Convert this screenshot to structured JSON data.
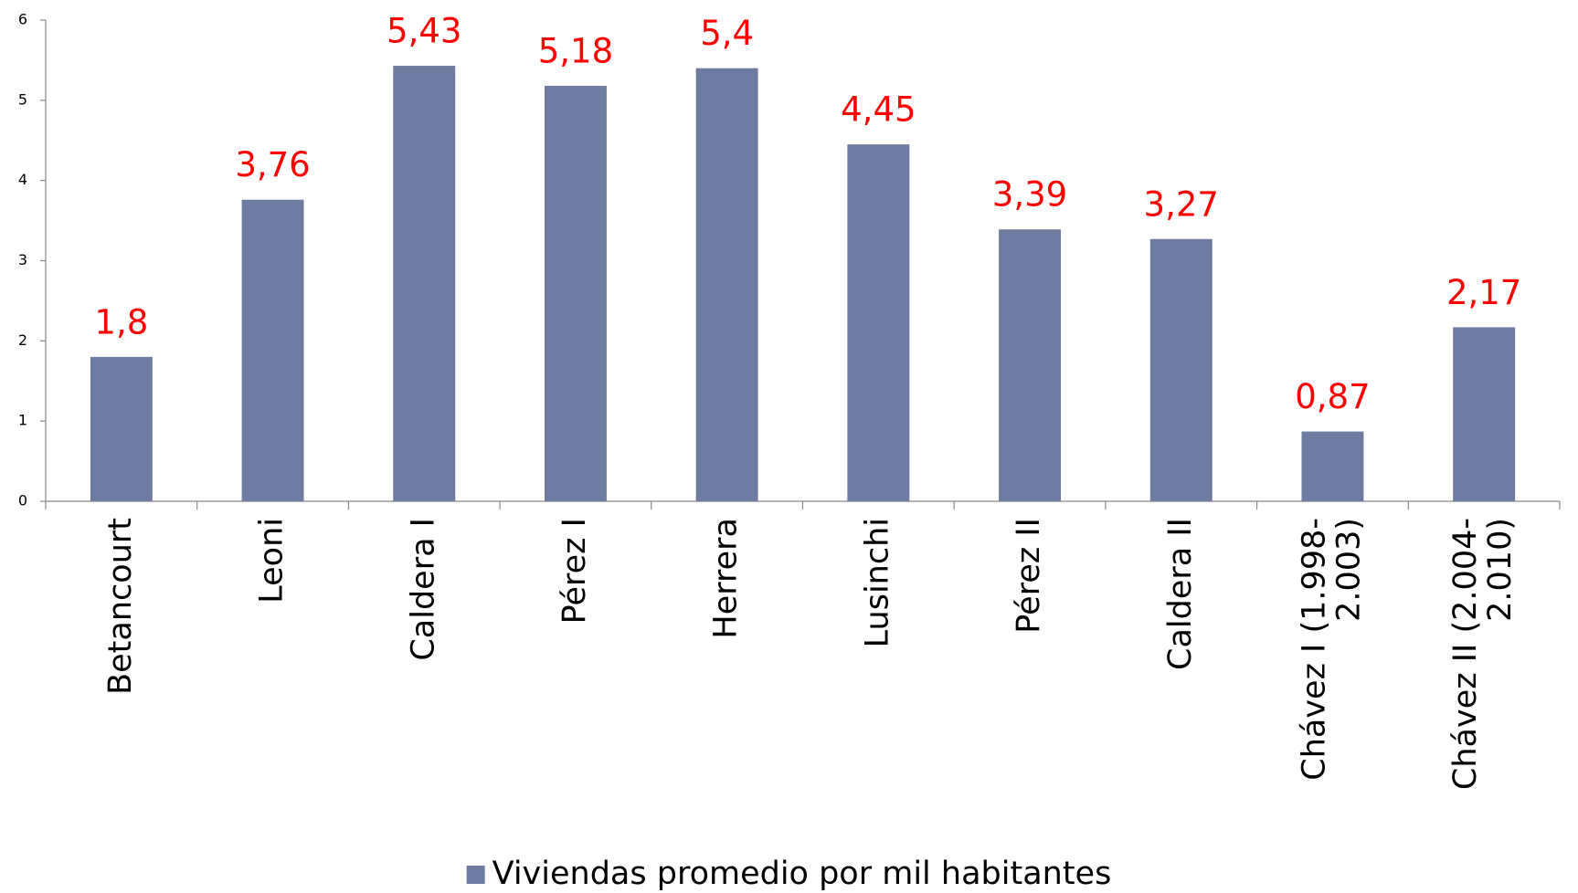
{
  "chart_data": {
    "type": "bar",
    "categories": [
      "Betancourt",
      "Leoni",
      "Caldera I",
      "Pérez I",
      "Herrera",
      "Lusinchi",
      "Pérez II",
      "Caldera II",
      "Chávez I (1.998-2.003)",
      "Chávez II (2.004-2.010)"
    ],
    "series": [
      {
        "name": "Viviendas promedio por mil habitantes",
        "color": "#6f7ba0",
        "values": [
          1.8,
          3.76,
          5.43,
          5.18,
          5.4,
          4.45,
          3.39,
          3.27,
          0.87,
          2.17
        ],
        "value_labels": [
          "1,8",
          "3,76",
          "5,43",
          "5,18",
          "5,4",
          "4,45",
          "3,39",
          "3,27",
          "0,87",
          "2,17"
        ]
      }
    ],
    "ylim": [
      0,
      6
    ],
    "yticks": [
      0,
      1,
      2,
      3,
      4,
      5,
      6
    ],
    "grid": false,
    "legend": "bottom",
    "value_label_color": "#ff0000"
  }
}
